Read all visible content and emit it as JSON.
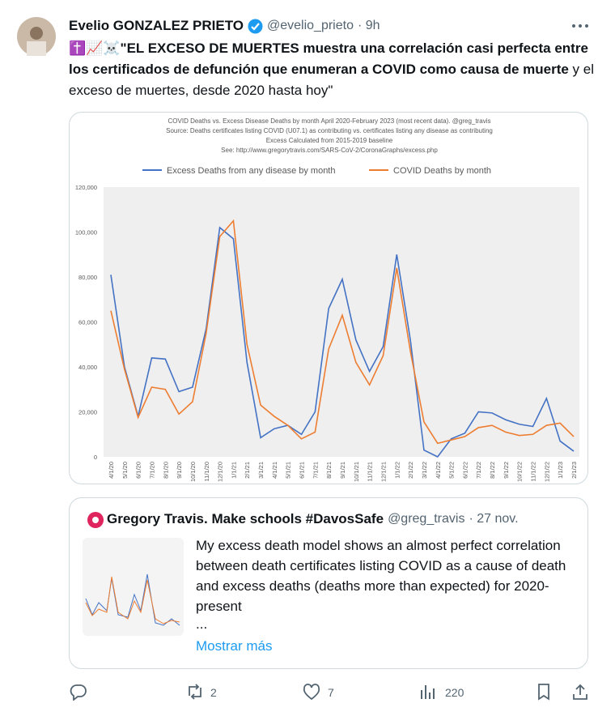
{
  "tweet": {
    "author_name": "Evelio GONZALEZ PRIETO",
    "handle": "@evelio_prieto",
    "time": "· 9h",
    "text_segments": [
      {
        "text": "✝️📈☠️",
        "bold": false
      },
      {
        "text": "\"EL EXCESO DE MUERTES muestra una correlación casi perfecta entre los certificados de defunción que enumeran a COVID como causa de muerte",
        "bold": true
      },
      {
        "text": " y el exceso de muertes, desde 2020 hasta hoy\"",
        "bold": false
      }
    ]
  },
  "chart_data": {
    "type": "line",
    "title": "COVID Deaths vs. Excess Disease Deaths by month April 2020-February 2023 (most recent data).  @greg_travis",
    "subtitle_lines": [
      "Source: Deaths certificates listing COVID (U07.1) as contributing vs. certificates listing any disease as contributing",
      "Excess Calculated from 2015-2019 baseline",
      "See: http://www.gregorytravis.com/SARS-CoV-2/CoronaGraphs/excess.php"
    ],
    "categories": [
      "4/1/20",
      "5/1/20",
      "6/1/20",
      "7/1/20",
      "8/1/20",
      "9/1/20",
      "10/1/20",
      "11/1/20",
      "12/1/20",
      "1/1/21",
      "2/1/21",
      "3/1/21",
      "4/1/21",
      "5/1/21",
      "6/1/21",
      "7/1/21",
      "8/1/21",
      "9/1/21",
      "10/1/21",
      "11/1/21",
      "12/1/21",
      "1/1/22",
      "2/1/22",
      "3/1/22",
      "4/1/22",
      "5/1/22",
      "6/1/22",
      "7/1/22",
      "8/1/22",
      "9/1/22",
      "10/1/22",
      "11/1/22",
      "12/1/22",
      "1/1/23",
      "2/1/23"
    ],
    "series": [
      {
        "name": "Excess Deaths from any disease by month",
        "color": "#4472c4",
        "values": [
          81000,
          40000,
          18000,
          44000,
          43500,
          29000,
          31000,
          57000,
          102000,
          97000,
          42000,
          8500,
          12500,
          14000,
          10000,
          20000,
          66000,
          79000,
          52000,
          38000,
          49000,
          90000,
          52000,
          3000,
          0,
          8000,
          10500,
          20000,
          19500,
          16500,
          14500,
          13500,
          26000,
          7000,
          2500
        ]
      },
      {
        "name": "COVID Deaths by month",
        "color": "#ed7d31",
        "values": [
          65000,
          39000,
          17500,
          31000,
          30000,
          19000,
          24500,
          55000,
          98000,
          105000,
          50000,
          23000,
          18000,
          14000,
          8000,
          11000,
          48000,
          63000,
          42000,
          32000,
          45000,
          84000,
          47000,
          15500,
          6000,
          7500,
          9000,
          13000,
          14000,
          11000,
          9500,
          10000,
          14000,
          15000,
          9000
        ]
      }
    ],
    "ylim": [
      0,
      120000
    ],
    "yticks": [
      0,
      {
        "value": 20000,
        "label": "20,000"
      },
      {
        "value": 40000,
        "label": "40,000"
      },
      {
        "value": 60000,
        "label": "60,000"
      },
      {
        "value": 80000,
        "label": "80,000"
      },
      {
        "value": 100000,
        "label": "100,000"
      },
      {
        "value": 120000,
        "label": "120,000"
      }
    ],
    "grid": false,
    "legend": "top"
  },
  "quoted": {
    "author_name": "Gregory Travis. Make schools #DavosSafe",
    "handle": "@greg_travis",
    "time": "· 27 nov.",
    "text": "My excess death model shows an almost perfect correlation between death certificates listing COVID as a cause of death and excess deaths (deaths more than expected) for 2020-present",
    "ellipsis": "...",
    "show_more": "Mostrar más"
  },
  "actions": {
    "retweets": 2,
    "likes": 7,
    "views": 220
  }
}
